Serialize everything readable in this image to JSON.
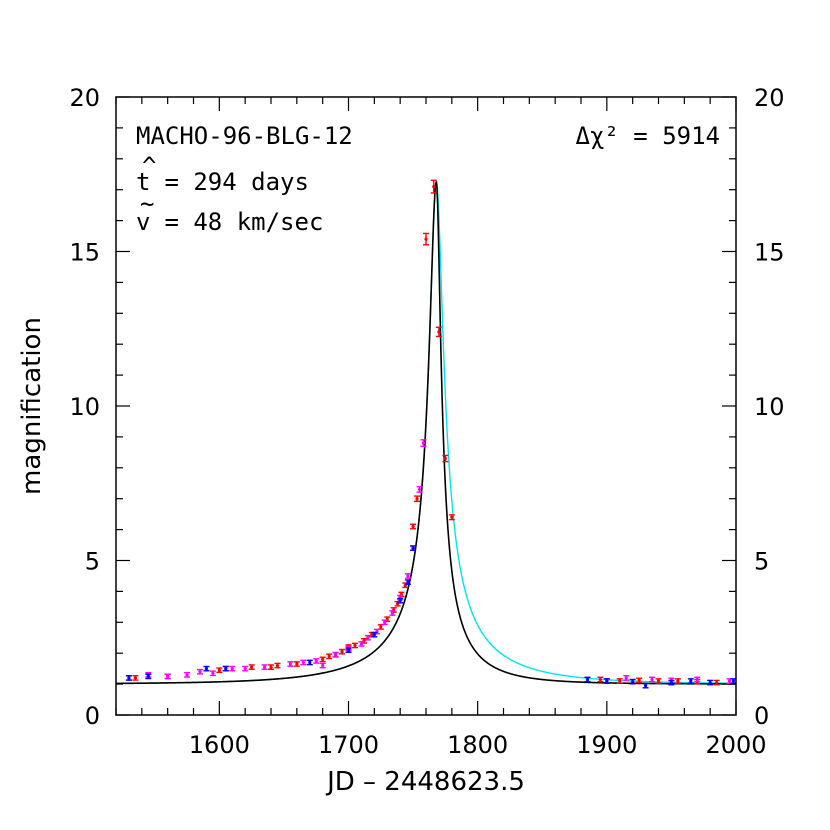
{
  "chart_data": {
    "type": "line",
    "title": "MACHO-96-BLG-12",
    "xlabel": "JD – 2448623.5",
    "ylabel": "magnification",
    "xlim": [
      1520,
      2000
    ],
    "ylim": [
      0,
      20
    ],
    "xticks": [
      1600,
      1700,
      1800,
      1900,
      2000
    ],
    "yticks": [
      0,
      5,
      10,
      15,
      20
    ],
    "annotations": {
      "delta_chi2": "Δχ² = 5914",
      "t_hat_symbol": "t",
      "t_hat_value": " = 294 days",
      "v_tilde_symbol": "v",
      "v_tilde_value": " = 48 km/sec"
    },
    "colors": {
      "fit_parallax": "#000000",
      "fit_standard": "#00e5ee",
      "data_red": "#ff0000",
      "data_magenta": "#ff00ff",
      "data_blue": "#0000ff"
    },
    "fits": [
      {
        "style": "black",
        "t0": 1768,
        "u0": 0.058,
        "tE": 90,
        "tE_post": 57
      },
      {
        "style": "cyan",
        "t0": 1768,
        "u0": 0.058,
        "tE": 90,
        "tE_post": 90
      }
    ],
    "series": [
      {
        "color": "red",
        "points": [
          [
            1535,
            1.2
          ],
          [
            1560,
            1.25
          ],
          [
            1600,
            1.45
          ],
          [
            1605,
            1.5
          ],
          [
            1625,
            1.55
          ],
          [
            1640,
            1.55
          ],
          [
            1645,
            1.6
          ],
          [
            1660,
            1.65
          ],
          [
            1680,
            1.8
          ],
          [
            1685,
            1.9
          ],
          [
            1690,
            1.95
          ],
          [
            1695,
            2.05
          ],
          [
            1700,
            2.2
          ],
          [
            1705,
            2.25
          ],
          [
            1712,
            2.4
          ],
          [
            1718,
            2.6
          ],
          [
            1725,
            2.85
          ],
          [
            1730,
            3.1
          ],
          [
            1735,
            3.4
          ],
          [
            1738,
            3.6
          ],
          [
            1741,
            3.9
          ],
          [
            1744,
            4.2
          ],
          [
            1750,
            6.1
          ],
          [
            1753,
            7.0
          ],
          [
            1760,
            15.4
          ],
          [
            1766,
            17.1
          ],
          [
            1770,
            12.4
          ],
          [
            1775,
            8.3
          ],
          [
            1780,
            6.4
          ],
          [
            1895,
            1.15
          ],
          [
            1910,
            1.1
          ],
          [
            1925,
            1.12
          ],
          [
            1940,
            1.1
          ],
          [
            1955,
            1.1
          ],
          [
            1970,
            1.08
          ],
          [
            1985,
            1.05
          ]
        ]
      },
      {
        "color": "magenta",
        "points": [
          [
            1530,
            1.2
          ],
          [
            1545,
            1.3
          ],
          [
            1560,
            1.25
          ],
          [
            1575,
            1.3
          ],
          [
            1585,
            1.4
          ],
          [
            1595,
            1.35
          ],
          [
            1610,
            1.5
          ],
          [
            1620,
            1.5
          ],
          [
            1635,
            1.55
          ],
          [
            1655,
            1.65
          ],
          [
            1665,
            1.7
          ],
          [
            1675,
            1.75
          ],
          [
            1680,
            1.6
          ],
          [
            1690,
            1.95
          ],
          [
            1700,
            2.15
          ],
          [
            1710,
            2.3
          ],
          [
            1715,
            2.5
          ],
          [
            1722,
            2.7
          ],
          [
            1728,
            3.0
          ],
          [
            1734,
            3.3
          ],
          [
            1740,
            3.8
          ],
          [
            1746,
            4.5
          ],
          [
            1750,
            5.4
          ],
          [
            1755,
            7.3
          ],
          [
            1758,
            8.8
          ],
          [
            1900,
            1.1
          ],
          [
            1915,
            1.2
          ],
          [
            1935,
            1.15
          ],
          [
            1950,
            1.12
          ],
          [
            1970,
            1.15
          ],
          [
            1995,
            1.1
          ]
        ]
      },
      {
        "color": "blue",
        "points": [
          [
            1530,
            1.2
          ],
          [
            1545,
            1.25
          ],
          [
            1590,
            1.5
          ],
          [
            1605,
            1.5
          ],
          [
            1670,
            1.7
          ],
          [
            1700,
            2.1
          ],
          [
            1720,
            2.6
          ],
          [
            1740,
            3.7
          ],
          [
            1746,
            4.3
          ],
          [
            1750,
            5.4
          ],
          [
            1885,
            1.15
          ],
          [
            1900,
            1.1
          ],
          [
            1920,
            1.08
          ],
          [
            1930,
            0.95
          ],
          [
            1950,
            1.05
          ],
          [
            1965,
            1.1
          ],
          [
            1980,
            1.05
          ],
          [
            1998,
            1.1
          ]
        ]
      }
    ]
  }
}
